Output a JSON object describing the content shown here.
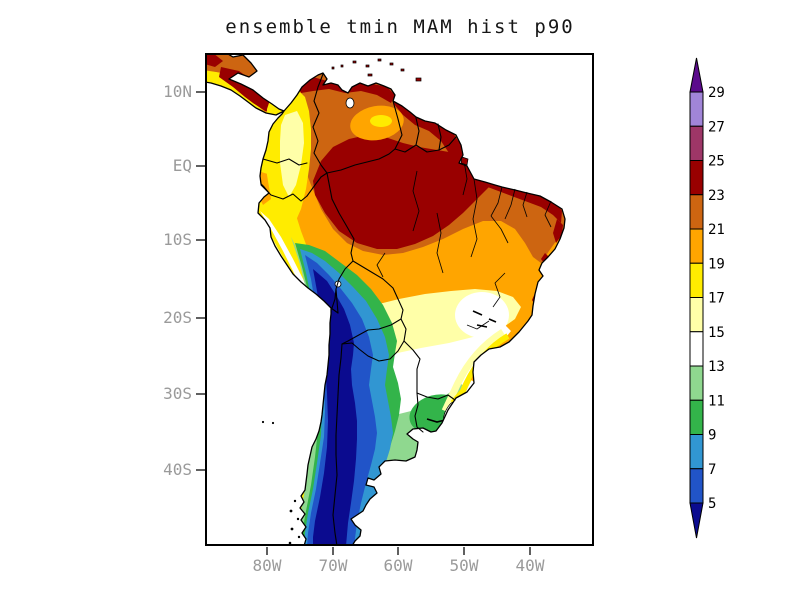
{
  "title": "ensemble tmin MAM hist p90",
  "axes": {
    "lat_labels": [
      "10N",
      "EQ",
      "10S",
      "20S",
      "30S",
      "40S"
    ],
    "lon_labels": [
      "80W",
      "70W",
      "60W",
      "50W",
      "40W"
    ],
    "label_color": "#9a9a9a"
  },
  "colorbar": {
    "tick_labels": [
      "29",
      "27",
      "25",
      "23",
      "21",
      "19",
      "17",
      "15",
      "13",
      "11",
      "9",
      "7",
      "5"
    ],
    "cells_top_to_bottom": [
      {
        "range": "27-29",
        "color": "#a185d8"
      },
      {
        "range": "25-27",
        "color": "#9e3667"
      },
      {
        "range": "23-25",
        "color": "#990000"
      },
      {
        "range": "21-23",
        "color": "#cd6511"
      },
      {
        "range": "19-21",
        "color": "#ffa500"
      },
      {
        "range": "17-19",
        "color": "#ffec00"
      },
      {
        "range": "15-17",
        "color": "#ffffa8"
      },
      {
        "range": "13-15",
        "color": "#ffffff"
      },
      {
        "range": "11-13",
        "color": "#8fd88f"
      },
      {
        "range": "9-11",
        "color": "#33b44a"
      },
      {
        "range": "7-9",
        "color": "#3196d2"
      },
      {
        "range": "5-7",
        "color": "#2154c8"
      }
    ],
    "arrow_above_color": "#5b0a8c",
    "arrow_below_color": "#0b0b8f"
  },
  "palette": {
    "gt29": "#5b0a8c",
    "b27_29": "#a185d8",
    "b25_27": "#9e3667",
    "b23_25": "#990000",
    "b21_23": "#cd6511",
    "b19_21": "#ffa500",
    "b17_19": "#ffec00",
    "b15_17": "#ffffa8",
    "b13_15": "#ffffff",
    "b11_13": "#8fd88f",
    "b9_11": "#33b44a",
    "b7_9": "#3196d2",
    "b5_7": "#2154c8",
    "lt5": "#0b0b8f",
    "coast": "#000000",
    "ocean": "#ffffff"
  },
  "chart_data": {
    "type": "heatmap",
    "title": "ensemble tmin MAM hist p90",
    "region": "South America with part of Central America",
    "x_ticks": [
      "80W",
      "70W",
      "60W",
      "50W",
      "40W"
    ],
    "y_ticks": [
      "10N",
      "EQ",
      "10S",
      "20S",
      "30S",
      "40S"
    ],
    "levels": [
      5,
      7,
      9,
      11,
      13,
      15,
      17,
      19,
      21,
      23,
      25,
      27,
      29
    ],
    "colorbar_extends": "both",
    "features": [
      "Amazon basin core shaded 23-25 (dark red), ringed by 21-23 dark orange and 19-21 amber",
      "Dark red 23-25 strips along Venezuela, Guianas and north/northeast Brazil coasts",
      "Yellow 17-19 band with pale 15-17 core over the Colombian Andes; amber patch with yellow core in Venezuela",
      "Yellow to pale-yellow to white (13-15) transition across central and southeast Brazil interior",
      "Light green 11-13 over Uruguay, pampas and south Brazil with green 9-11 patch in Uruguay",
      "Nested green/blue bands along the Andes from Peru through Chile; navy <5 core over the Altiplano and Patagonia",
      "White lake specks (Titicaca, Maracaibo) and black lake squiggles in southeast Brazil and Uruguay"
    ]
  }
}
